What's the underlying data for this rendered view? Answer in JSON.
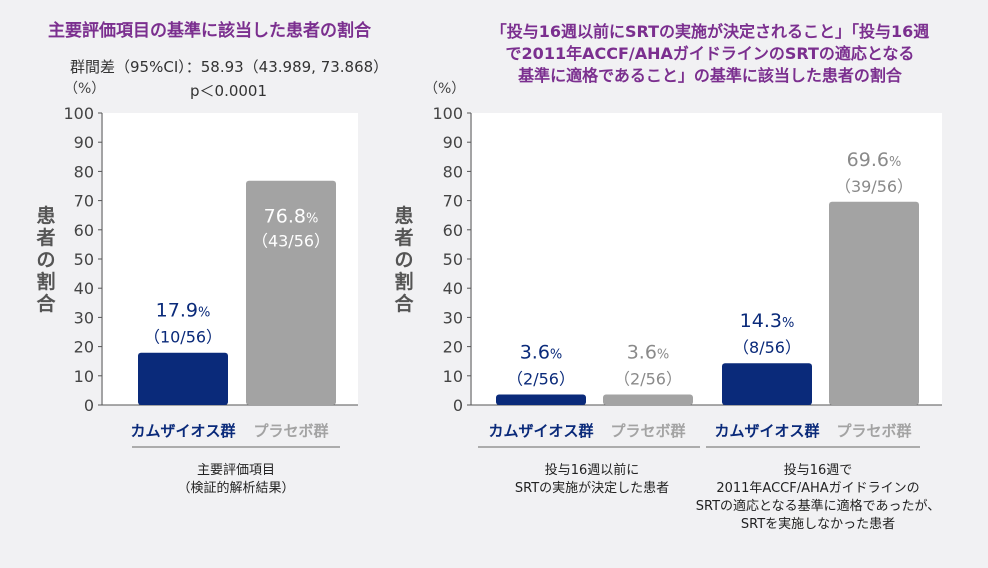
{
  "chart_data": [
    {
      "type": "bar",
      "title": "主要評価項目の基準に該当した患者の割合",
      "subtitle_lines": [
        "群間差（95%CI）：58.93（43.989, 73.868）",
        "p＜0.0001"
      ],
      "ylabel": "患者の割合",
      "y_unit": "（%）",
      "ylim": [
        0,
        100
      ],
      "yticks": [
        0,
        10,
        20,
        30,
        40,
        50,
        60,
        70,
        80,
        90,
        100
      ],
      "groups": [
        {
          "caption_lines": [
            "主要評価項目",
            "（検証的解析結果）"
          ]
        }
      ],
      "categories": [
        "カムザイオス群",
        "プラセボ群"
      ],
      "series_colors": [
        "#0a2a7a",
        "#a3a3a3"
      ],
      "values": [
        17.9,
        76.8
      ],
      "percent_labels": [
        "17.9",
        "76.8"
      ],
      "count_labels": [
        "（10/56）",
        "（43/56）"
      ],
      "grid": false
    },
    {
      "type": "bar",
      "title_lines": [
        "「投与16週以前にSRTの実施が決定されること」「投与16週",
        "で2011年ACCF/AHAガイドラインのSRTの適応となる",
        "基準に適格であること」の基準に該当した患者の割合"
      ],
      "ylabel": "患者の割合",
      "y_unit": "（%）",
      "ylim": [
        0,
        100
      ],
      "yticks": [
        0,
        10,
        20,
        30,
        40,
        50,
        60,
        70,
        80,
        90,
        100
      ],
      "groups": [
        {
          "caption_lines": [
            "投与16週以前に",
            "SRTの実施が決定した患者"
          ],
          "categories": [
            "カムザイオス群",
            "プラセボ群"
          ],
          "values": [
            3.6,
            3.6
          ],
          "percent_labels": [
            "3.6",
            "3.6"
          ],
          "count_labels": [
            "（2/56）",
            "（2/56）"
          ]
        },
        {
          "caption_lines": [
            "投与16週で",
            "2011年ACCF/AHAガイドラインの",
            "SRTの適応となる基準に適格であったが、",
            "SRTを実施しなかった患者"
          ],
          "categories": [
            "カムザイオス群",
            "プラセボ群"
          ],
          "values": [
            14.3,
            69.6
          ],
          "percent_labels": [
            "14.3",
            "69.6"
          ],
          "count_labels": [
            "（8/56）",
            "（39/56）"
          ]
        }
      ],
      "series_colors": [
        "#0a2a7a",
        "#a3a3a3"
      ],
      "grid": false
    }
  ],
  "percent_sign": "%"
}
